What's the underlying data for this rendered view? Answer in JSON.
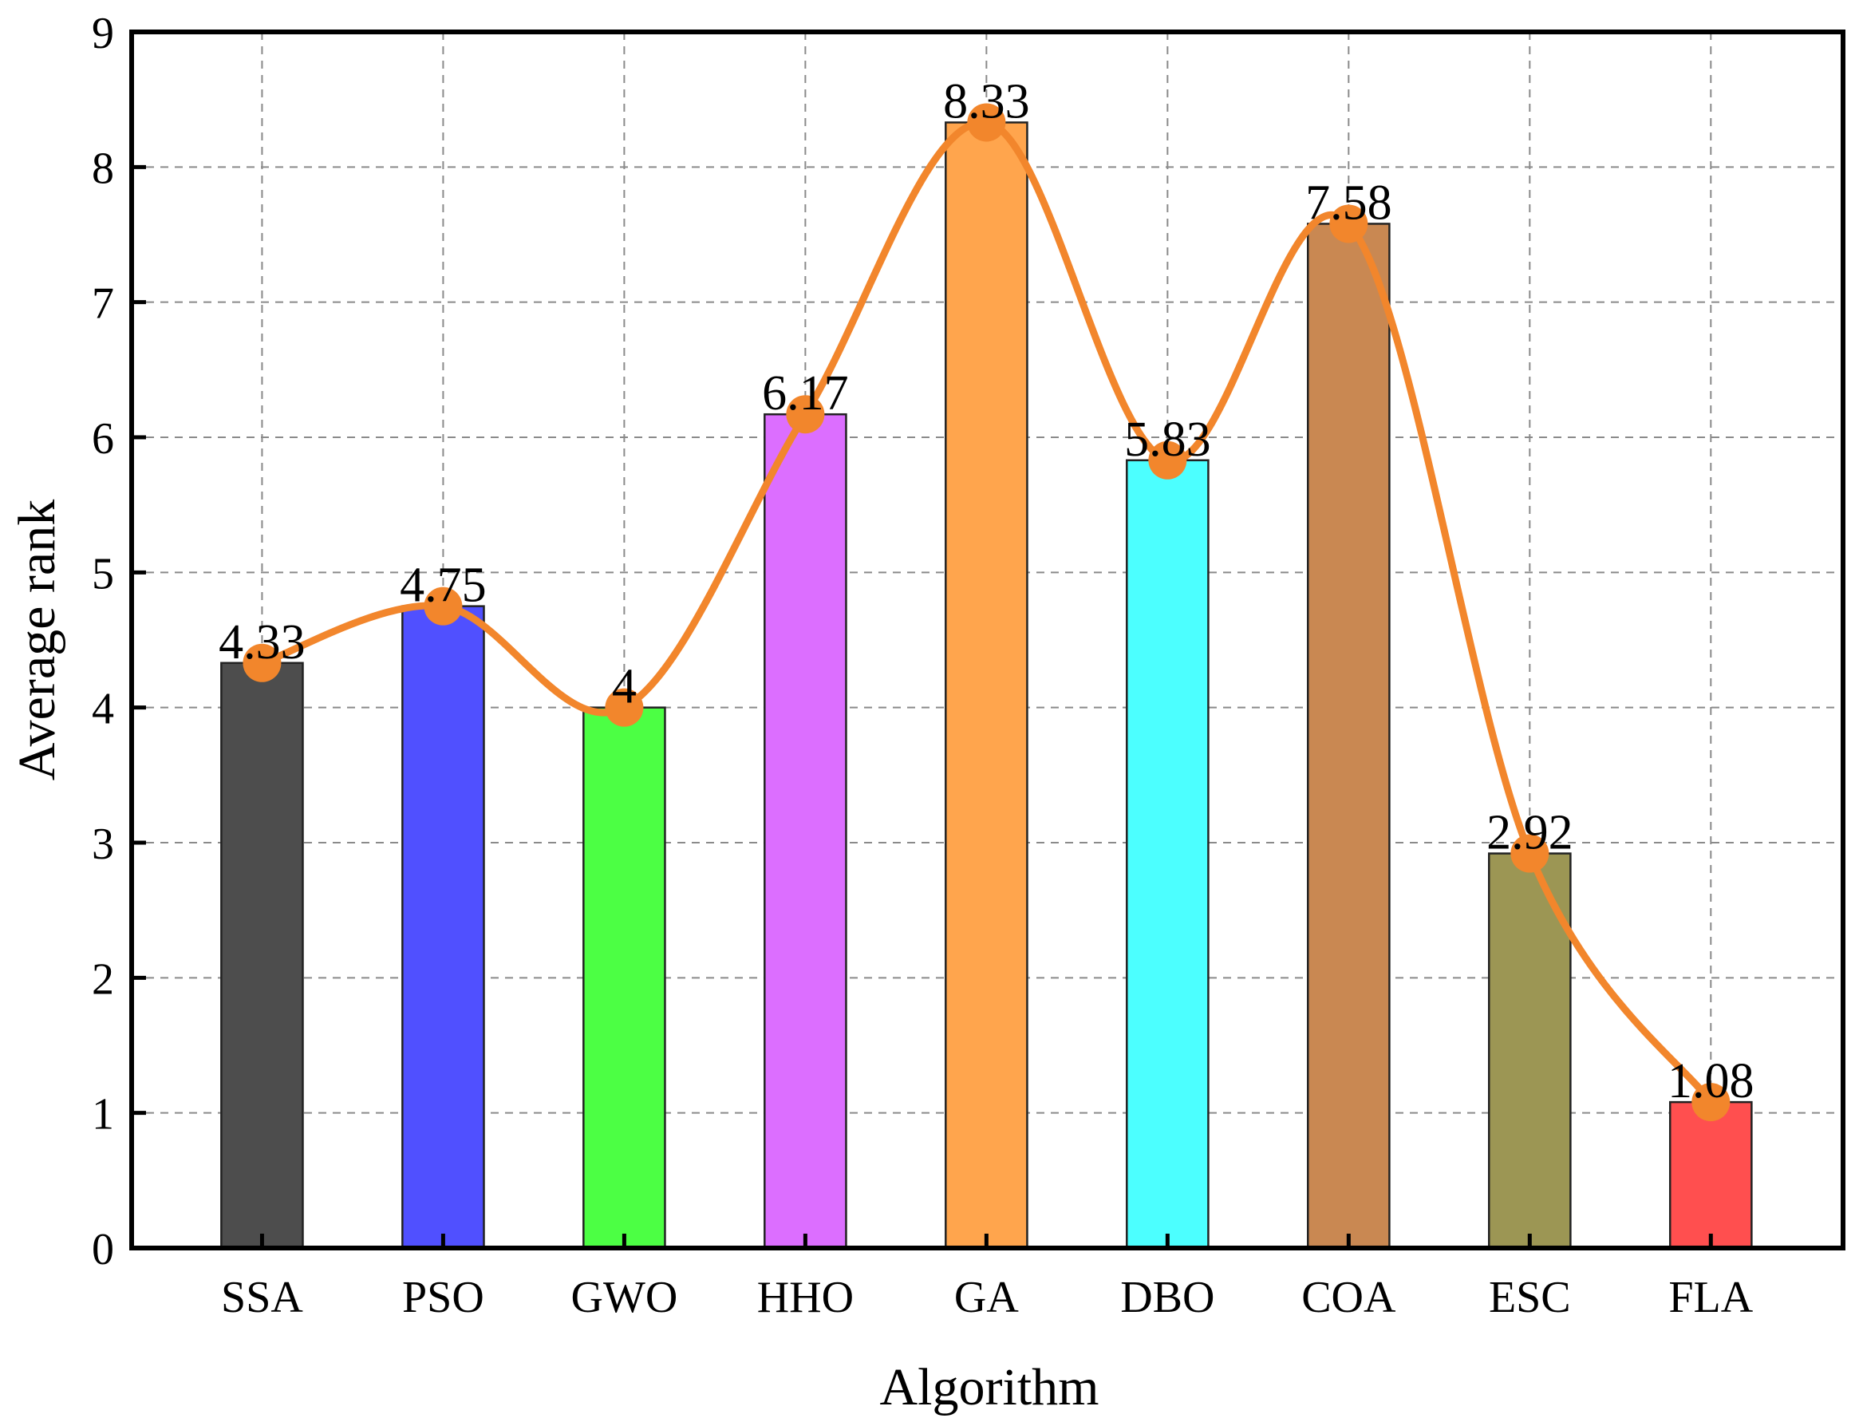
{
  "chart_data": {
    "type": "bar",
    "title": "",
    "xlabel": "Algorithm",
    "ylabel": "Average rank",
    "categories": [
      "SSA",
      "PSO",
      "GWO",
      "HHO",
      "GA",
      "DBO",
      "COA",
      "ESC",
      "FLA"
    ],
    "values": [
      4.33,
      4.75,
      4,
      6.17,
      8.33,
      5.83,
      7.58,
      2.92,
      1.08
    ],
    "value_labels": [
      "4.33",
      "4.75",
      "4",
      "6.17",
      "8.33",
      "5.83",
      "7.58",
      "2.92",
      "1.08"
    ],
    "bar_colors": [
      "#4d4d4d",
      "#5050ff",
      "#4cff44",
      "#dc6eff",
      "#ffa54d",
      "#4cffff",
      "#c98852",
      "#9c9654",
      "#ff4f4f"
    ],
    "overlay_line": {
      "type": "smooth-line",
      "color": "#f2862c",
      "marker": "circle"
    },
    "ylim": [
      0,
      9
    ],
    "yticks": [
      0,
      1,
      2,
      3,
      4,
      5,
      6,
      7,
      8,
      9
    ],
    "grid": true
  }
}
